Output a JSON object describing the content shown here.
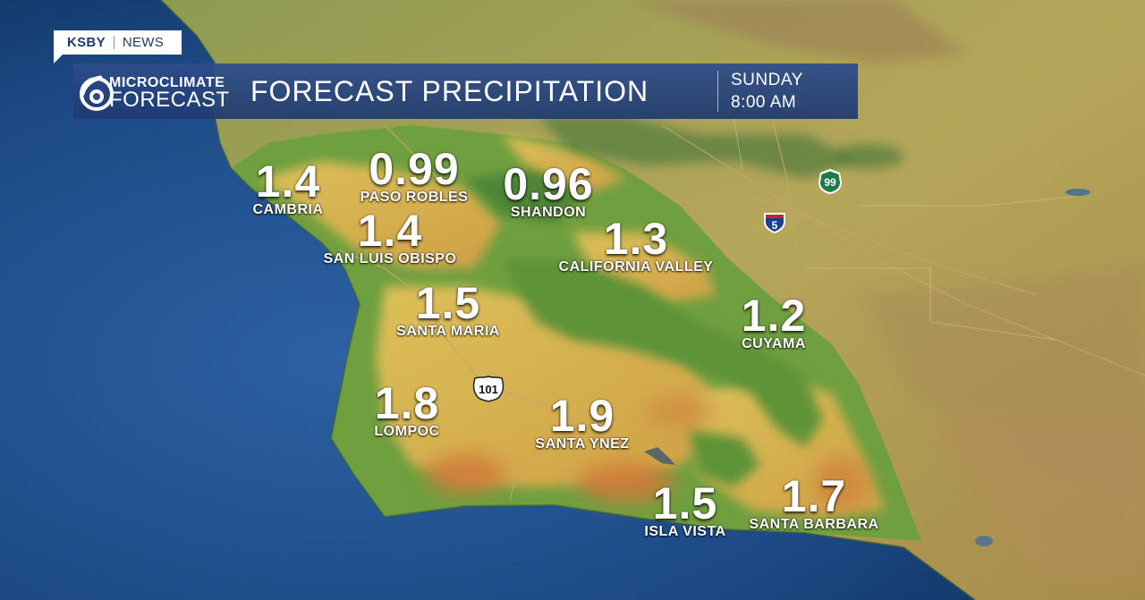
{
  "brand": {
    "station": "KSBY",
    "network": "NEWS"
  },
  "logo": {
    "numeral": "6",
    "line1": "MICROCLIMATE",
    "line2": "FORECAST"
  },
  "title": "FORECAST PRECIPITATION",
  "valid_time": {
    "day": "SUNDAY",
    "time": "8:00 AM"
  },
  "stations": [
    {
      "name": "CAMBRIA",
      "value": "1.4"
    },
    {
      "name": "PASO ROBLES",
      "value": "0.99"
    },
    {
      "name": "SHANDON",
      "value": "0.96"
    },
    {
      "name": "SAN LUIS OBISPO",
      "value": "1.4"
    },
    {
      "name": "CALIFORNIA VALLEY",
      "value": "1.3"
    },
    {
      "name": "SANTA MARIA",
      "value": "1.5"
    },
    {
      "name": "CUYAMA",
      "value": "1.2"
    },
    {
      "name": "LOMPOC",
      "value": "1.8"
    },
    {
      "name": "SANTA YNEZ",
      "value": "1.9"
    },
    {
      "name": "ISLA VISTA",
      "value": "1.5"
    },
    {
      "name": "SANTA BARBARA",
      "value": "1.7"
    }
  ],
  "highways": [
    {
      "number": "99",
      "type": "state-route"
    },
    {
      "number": "5",
      "type": "interstate"
    },
    {
      "number": "101",
      "type": "us-route"
    }
  ],
  "colors": {
    "ocean": "#1d4a86",
    "land": "#a5a050",
    "precip_green": "#5f9a3c",
    "precip_yellow": "#d2b24c",
    "precip_orange": "#d3823c",
    "title_bar": "#2a4a8a"
  }
}
